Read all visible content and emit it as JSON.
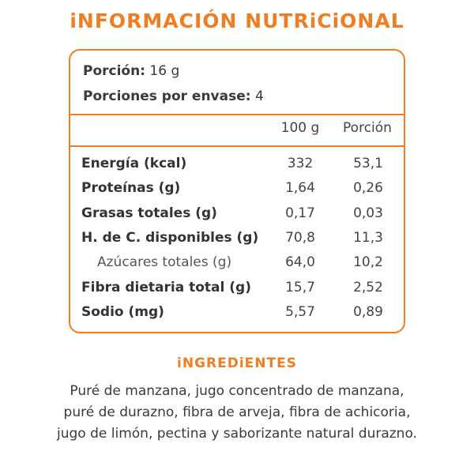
{
  "title": "iNFORMACIÓN NUTRiCiONAL",
  "serving": {
    "portion_label": "Porción:",
    "portion_value": "16 g",
    "servings_label": "Porciones por envase:",
    "servings_value": "4"
  },
  "columns": {
    "per100": "100 g",
    "per_portion": "Porción"
  },
  "nutrients": [
    {
      "name": "Energía (kcal)",
      "per100": "332",
      "portion": "53,1"
    },
    {
      "name": "Proteínas (g)",
      "per100": "1,64",
      "portion": "0,26"
    },
    {
      "name": "Grasas totales (g)",
      "per100": "0,17",
      "portion": "0,03"
    },
    {
      "name": "H. de C. disponibles (g)",
      "per100": "70,8",
      "portion": "11,3"
    },
    {
      "name": "Azúcares totales (g)",
      "per100": "64,0",
      "portion": "10,2"
    },
    {
      "name": "Fibra dietaria total (g)",
      "per100": "15,7",
      "portion": "2,52"
    },
    {
      "name": "Sodio (mg)",
      "per100": "5,57",
      "portion": "0,89"
    }
  ],
  "ingredients": {
    "title": "iNGREDiENTES",
    "line1": "Puré de manzana, jugo concentrado de manzana,",
    "line2": "puré de durazno, fibra de arveja, fibra de achicoria,",
    "line3": "jugo de limón, pectina y saborizante natural durazno."
  },
  "colors": {
    "accent": "#ef7d22",
    "text": "#3a3a3a"
  }
}
